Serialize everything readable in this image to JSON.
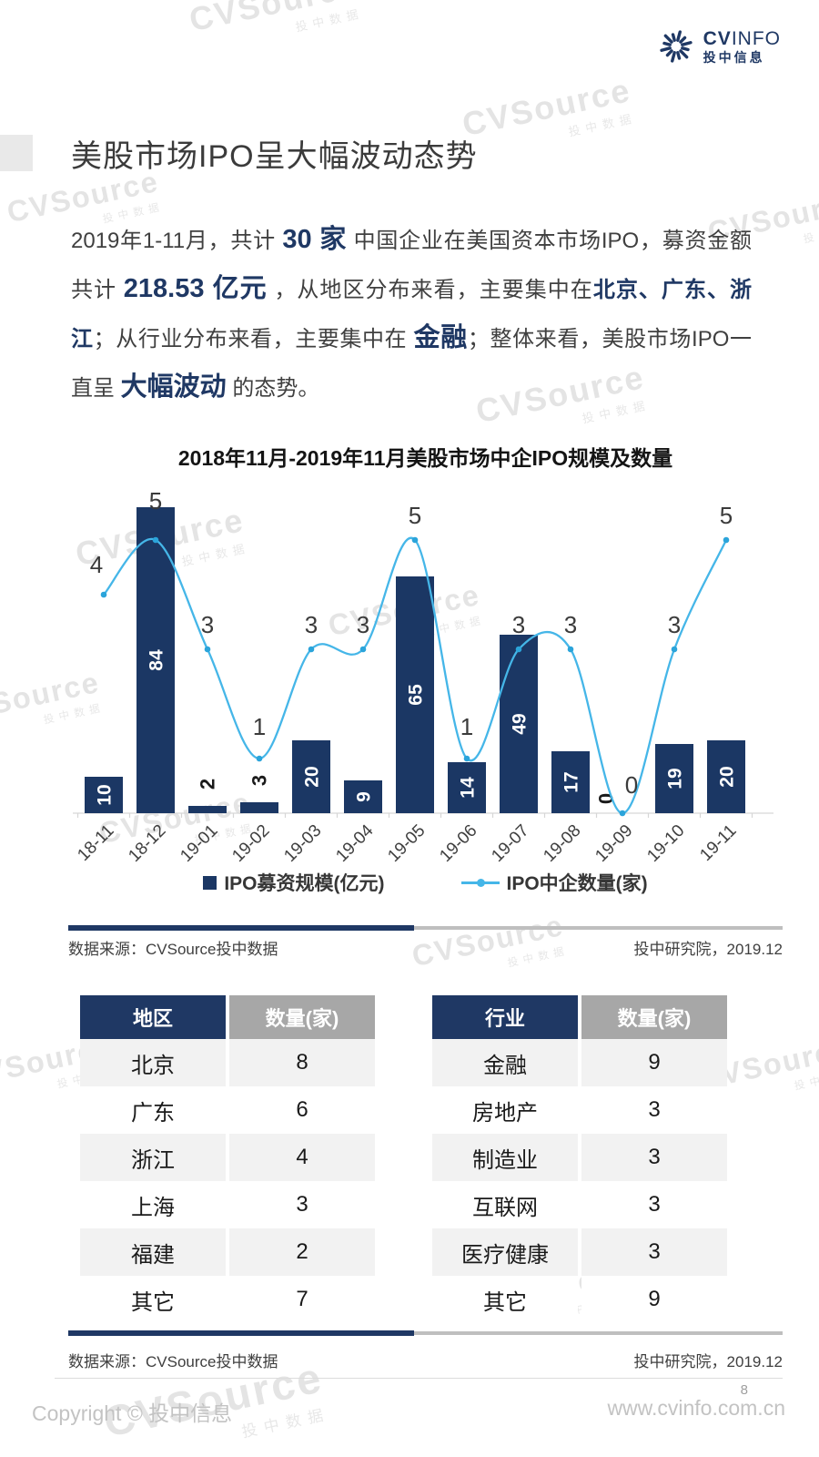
{
  "logo": {
    "brand_bold": "CV",
    "brand_light": "INFO",
    "subtitle": "投中信息"
  },
  "title": "美股市场IPO呈大幅波动态势",
  "intro": {
    "segments": [
      {
        "t": "2019年1-11月，共计 ",
        "s": "n"
      },
      {
        "t": "30 家",
        "s": "b"
      },
      {
        "t": " 中国企业在美国资本市场IPO，募资金额共计 ",
        "s": "n"
      },
      {
        "t": "218.53 亿元",
        "s": "b"
      },
      {
        "t": " ，从地区分布来看，主要集中在",
        "s": "n"
      },
      {
        "t": "北京、广东、浙江",
        "s": "e"
      },
      {
        "t": "；从行业分布来看，主要集中在 ",
        "s": "n"
      },
      {
        "t": "金融",
        "s": "b"
      },
      {
        "t": "；整体来看，美股市场IPO一直呈 ",
        "s": "n"
      },
      {
        "t": "大幅波动",
        "s": "b"
      },
      {
        "t": " 的态势。",
        "s": "n"
      }
    ]
  },
  "chart_data": {
    "type": "bar",
    "subtype": "bar+line combo",
    "title": "2018年11月-2019年11月美股市场中企IPO规模及数量",
    "categories": [
      "18-11",
      "18-12",
      "19-01",
      "19-02",
      "19-03",
      "19-04",
      "19-05",
      "19-06",
      "19-07",
      "19-08",
      "19-09",
      "19-10",
      "19-11"
    ],
    "series": [
      {
        "name": "IPO募资规模(亿元)",
        "type": "bar",
        "values": [
          10,
          84,
          2,
          3,
          20,
          9,
          65,
          14,
          49,
          17,
          0,
          19,
          20
        ],
        "color": "#1b3764"
      },
      {
        "name": "IPO中企数量(家)",
        "type": "line",
        "values": [
          4,
          5,
          3,
          1,
          3,
          3,
          5,
          1,
          3,
          3,
          0,
          3,
          5
        ],
        "color": "#45b6e8"
      }
    ],
    "bar_ylim": [
      0,
      90
    ],
    "line_ylim": [
      0,
      6
    ],
    "grid": false,
    "y_axis_visible": false,
    "legend_position": "bottom"
  },
  "sources": {
    "left": "数据来源：CVSource投中数据",
    "right": "投中研究院，2019.12"
  },
  "tables": {
    "region": {
      "headers": [
        "地区",
        "数量(家)"
      ],
      "rows": [
        [
          "北京",
          "8"
        ],
        [
          "广东",
          "6"
        ],
        [
          "浙江",
          "4"
        ],
        [
          "上海",
          "3"
        ],
        [
          "福建",
          "2"
        ],
        [
          "其它",
          "7"
        ]
      ]
    },
    "industry": {
      "headers": [
        "行业",
        "数量(家)"
      ],
      "rows": [
        [
          "金融",
          "9"
        ],
        [
          "房地产",
          "3"
        ],
        [
          "制造业",
          "3"
        ],
        [
          "互联网",
          "3"
        ],
        [
          "医疗健康",
          "3"
        ],
        [
          "其它",
          "9"
        ]
      ]
    }
  },
  "footer": {
    "page_number": "8",
    "copyright": "Copyright © 投中信息",
    "website": "www.cvinfo.com.cn"
  },
  "watermark": {
    "main": "CVSource",
    "sub": "投中数据",
    "positions": [
      [
        205,
        5,
        1
      ],
      [
        505,
        120,
        1
      ],
      [
        5,
        218,
        0.9
      ],
      [
        775,
        240,
        0.9
      ],
      [
        520,
        435,
        1
      ],
      [
        80,
        592,
        1
      ],
      [
        358,
        672,
        0.9
      ],
      [
        -60,
        768,
        0.9
      ],
      [
        106,
        900,
        0.9
      ],
      [
        450,
        1035,
        0.9
      ],
      [
        -45,
        1168,
        0.9
      ],
      [
        765,
        1170,
        0.9
      ],
      [
        505,
        1420,
        0.9
      ],
      [
        110,
        1540,
        1.3
      ]
    ]
  },
  "colors": {
    "navy": "#1f3864",
    "bar": "#1b3764",
    "line": "#45b6e8",
    "header_gray": "#a7a7a7",
    "stripe": "#f2f2f2",
    "axis": "#d6d6d6"
  }
}
